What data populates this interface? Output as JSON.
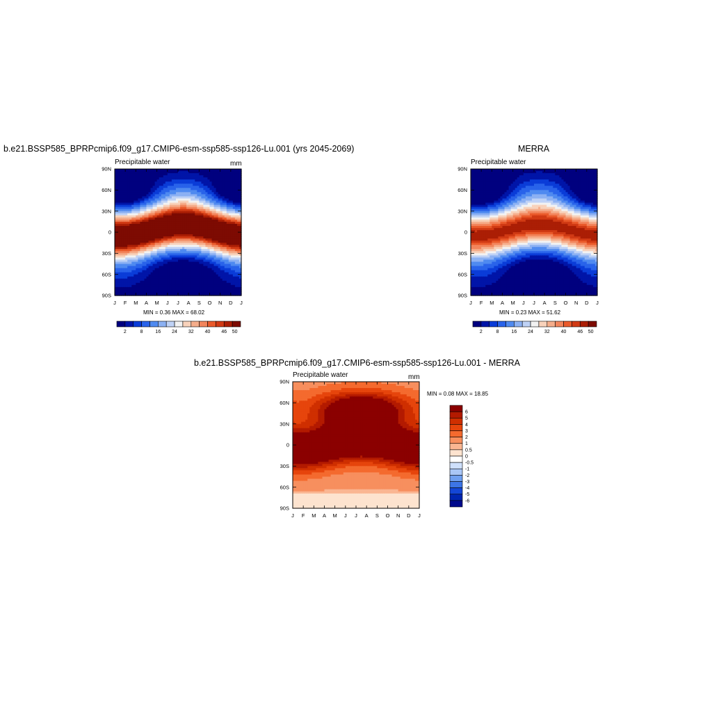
{
  "chart_data": [
    {
      "type": "heatmap",
      "title": "b.e21.BSSP585_BPRPcmip6.f09_g17.CMIP6-esm-ssp585-ssp126-Lu.001 (yrs 2045-2069)",
      "left_string": "Precipitable water",
      "right_string": "mm",
      "x_tick_labels": [
        "J",
        "F",
        "M",
        "A",
        "M",
        "J",
        "J",
        "A",
        "S",
        "O",
        "N",
        "D",
        "J"
      ],
      "y_tick_labels": [
        "90N",
        "60N",
        "30N",
        "0",
        "30S",
        "60S",
        "90S"
      ],
      "ylim": [
        -90,
        90
      ],
      "stats": "MIN =   0.36 MAX =  68.02",
      "legend": {
        "orientation": "horizontal",
        "colors": [
          "#00007f",
          "#0015a8",
          "#0a3cd8",
          "#2963ea",
          "#4f8af0",
          "#8cb1f3",
          "#bfd2f6",
          "#f2f2f2",
          "#f8d2bb",
          "#f5ad8b",
          "#f2855c",
          "#ea5a2b",
          "#d13a14",
          "#ab1e05",
          "#7d0b02"
        ],
        "tick_labels": [
          "2",
          "8",
          "16",
          "24",
          "32",
          "40",
          "46",
          "50"
        ]
      },
      "field": {
        "kind": "absolute",
        "equator_shift_deg": 8,
        "peak_mm": 62,
        "min_mm": 0.36,
        "max_mm": 68.02
      }
    },
    {
      "type": "heatmap",
      "title": "MERRA",
      "left_string": "Precipitable water",
      "right_string": "",
      "x_tick_labels": [
        "J",
        "F",
        "M",
        "A",
        "M",
        "J",
        "J",
        "A",
        "S",
        "O",
        "N",
        "D",
        "J"
      ],
      "y_tick_labels": [
        "90N",
        "60N",
        "30N",
        "0",
        "30S",
        "60S",
        "90S"
      ],
      "ylim": [
        -90,
        90
      ],
      "stats": "MIN =   0.23 MAX =  51.62",
      "legend": {
        "orientation": "horizontal",
        "colors": [
          "#00007f",
          "#0015a8",
          "#0a3cd8",
          "#2963ea",
          "#4f8af0",
          "#8cb1f3",
          "#bfd2f6",
          "#f2f2f2",
          "#f8d2bb",
          "#f5ad8b",
          "#f2855c",
          "#ea5a2b",
          "#d13a14",
          "#ab1e05",
          "#7d0b02"
        ],
        "tick_labels": [
          "2",
          "8",
          "16",
          "24",
          "32",
          "40",
          "46",
          "50"
        ]
      },
      "field": {
        "kind": "absolute",
        "equator_shift_deg": 8,
        "peak_mm": 48,
        "min_mm": 0.23,
        "max_mm": 51.62
      }
    },
    {
      "type": "heatmap",
      "title": "b.e21.BSSP585_BPRPcmip6.f09_g17.CMIP6-esm-ssp585-ssp126-Lu.001 - MERRA",
      "left_string": "Precipitable water",
      "right_string": "mm",
      "x_tick_labels": [
        "J",
        "F",
        "M",
        "A",
        "M",
        "J",
        "J",
        "A",
        "S",
        "O",
        "N",
        "D",
        "J"
      ],
      "y_tick_labels": [
        "90N",
        "60N",
        "30N",
        "0",
        "30S",
        "60S",
        "90S"
      ],
      "ylim": [
        -90,
        90
      ],
      "stats": "MIN =   0.08 MAX =  18.85",
      "legend": {
        "orientation": "vertical",
        "colors": [
          "#8b0000",
          "#b31a00",
          "#cf2f00",
          "#e6450c",
          "#f46a2e",
          "#f78f5e",
          "#fab692",
          "#fde3cf",
          "#ffffff",
          "#cfe0fb",
          "#a9c6f6",
          "#6f9ff0",
          "#3d75e6",
          "#1446d6",
          "#0025b0",
          "#000a8c"
        ],
        "tick_labels": [
          "6",
          "5",
          "4",
          "3",
          "2",
          "1",
          "0.5",
          "0",
          "-0.5",
          "-1",
          "-2",
          "-3",
          "-4",
          "-5",
          "-6"
        ]
      },
      "field": {
        "kind": "difference",
        "min_mm": 0.08,
        "max_mm": 18.85
      }
    }
  ]
}
